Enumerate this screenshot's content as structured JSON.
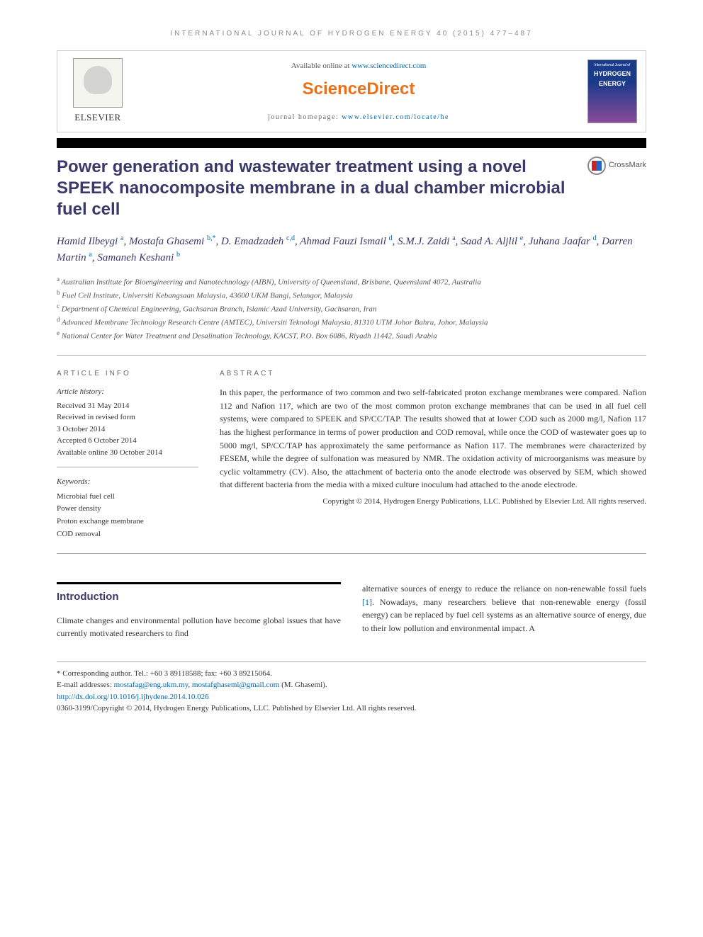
{
  "running_header": "INTERNATIONAL JOURNAL OF HYDROGEN ENERGY 40 (2015) 477–487",
  "header": {
    "publisher_label": "ELSEVIER",
    "available_text": "Available online at ",
    "available_link": "www.sciencedirect.com",
    "brand": "ScienceDirect",
    "homepage_label": "journal homepage: ",
    "homepage_link": "www.elsevier.com/locate/he",
    "cover_top": "International Journal of",
    "cover_main1": "HYDROGEN",
    "cover_main2": "ENERGY"
  },
  "crossmark_label": "CrossMark",
  "title": "Power generation and wastewater treatment using a novel SPEEK nanocomposite membrane in a dual chamber microbial fuel cell",
  "authors_html_parts": [
    {
      "name": "Hamid Ilbeygi",
      "sup": "a"
    },
    {
      "name": "Mostafa Ghasemi",
      "sup": "b,*"
    },
    {
      "name": "D. Emadzadeh",
      "sup": "c,d"
    },
    {
      "name": "Ahmad Fauzi Ismail",
      "sup": "d"
    },
    {
      "name": "S.M.J. Zaidi",
      "sup": "a"
    },
    {
      "name": "Saad A. Aljlil",
      "sup": "e"
    },
    {
      "name": "Juhana Jaafar",
      "sup": "d"
    },
    {
      "name": "Darren Martin",
      "sup": "a"
    },
    {
      "name": "Samaneh Keshani",
      "sup": "b"
    }
  ],
  "affiliations": [
    {
      "sup": "a",
      "text": "Australian Institute for Bioengineering and Nanotechnology (AIBN), University of Queensland, Brisbane, Queensland 4072, Australia"
    },
    {
      "sup": "b",
      "text": "Fuel Cell Institute, Universiti Kebangsaan Malaysia, 43600 UKM Bangi, Selangor, Malaysia"
    },
    {
      "sup": "c",
      "text": "Department of Chemical Engineering, Gachsaran Branch, Islamic Azad University, Gachsaran, Iran"
    },
    {
      "sup": "d",
      "text": "Advanced Membrane Technology Research Centre (AMTEC), Universiti Teknologi Malaysia, 81310 UTM Johor Bahru, Johor, Malaysia"
    },
    {
      "sup": "e",
      "text": "National Center for Water Treatment and Desalination Technology, KACST, P.O. Box 6086, Riyadh 11442, Saudi Arabia"
    }
  ],
  "article_info": {
    "label": "ARTICLE INFO",
    "history_label": "Article history:",
    "history": [
      "Received 31 May 2014",
      "Received in revised form",
      "3 October 2014",
      "Accepted 6 October 2014",
      "Available online 30 October 2014"
    ],
    "keywords_label": "Keywords:",
    "keywords": [
      "Microbial fuel cell",
      "Power density",
      "Proton exchange membrane",
      "COD removal"
    ]
  },
  "abstract": {
    "label": "ABSTRACT",
    "text": "In this paper, the performance of two common and two self-fabricated proton exchange membranes were compared. Nafion 112 and Nafion 117, which are two of the most common proton exchange membranes that can be used in all fuel cell systems, were compared to SPEEK and SP/CC/TAP. The results showed that at lower COD such as 2000 mg/l, Nafion 117 has the highest performance in terms of power production and COD removal, while once the COD of wastewater goes up to 5000 mg/l, SP/CC/TAP has approximately the same performance as Nafion 117. The membranes were characterized by FESEM, while the degree of sulfonation was measured by NMR. The oxidation activity of microorganisms was measure by cyclic voltammetry (CV). Also, the attachment of bacteria onto the anode electrode was observed by SEM, which showed that different bacteria from the media with a mixed culture inoculum had attached to the anode electrode.",
    "copyright": "Copyright © 2014, Hydrogen Energy Publications, LLC. Published by Elsevier Ltd. All rights reserved."
  },
  "body": {
    "heading": "Introduction",
    "col1": "Climate changes and environmental pollution have become global issues that have currently motivated researchers to find",
    "col2_a": "alternative sources of energy to reduce the reliance on non-renewable fossil fuels ",
    "col2_ref": "[1]",
    "col2_b": ". Nowadays, many researchers believe that non-renewable energy (fossil energy) can be replaced by fuel cell systems as an alternative source of energy, due to their low pollution and environmental impact. A"
  },
  "footer": {
    "corresponding": "* Corresponding author. Tel.: +60 3 89118588; fax: +60 3 89215064.",
    "email_label": "E-mail addresses: ",
    "email1": "mostafag@eng.ukm.my",
    "email2": "mostafghasemi@gmail.com",
    "email_suffix": " (M. Ghasemi).",
    "doi": "http://dx.doi.org/10.1016/j.ijhydene.2014.10.026",
    "issn_line": "0360-3199/Copyright © 2014, Hydrogen Energy Publications, LLC. Published by Elsevier Ltd. All rights reserved."
  },
  "colors": {
    "title_color": "#3a3a6a",
    "link_color": "#0066aa",
    "brand_color": "#e9711c",
    "text_color": "#333333",
    "muted": "#666666"
  }
}
